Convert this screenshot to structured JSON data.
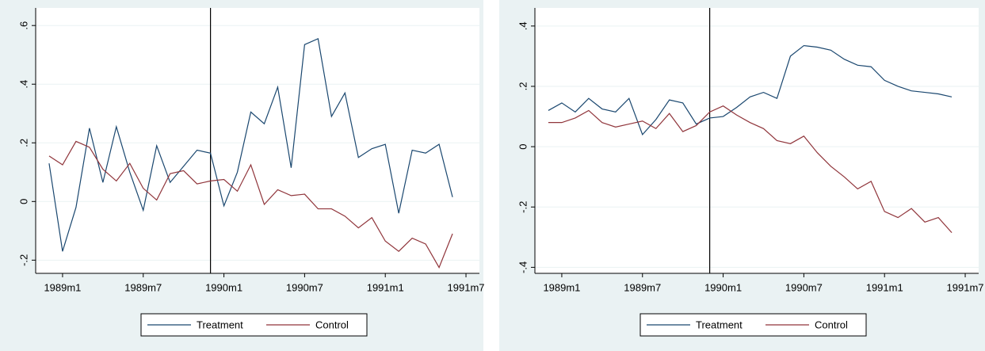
{
  "chart_data": [
    {
      "type": "line",
      "xline": "1989m12",
      "x": [
        "1988m12",
        "1989m1",
        "1989m2",
        "1989m3",
        "1989m4",
        "1989m5",
        "1989m6",
        "1989m7",
        "1989m8",
        "1989m9",
        "1989m10",
        "1989m11",
        "1989m12",
        "1990m1",
        "1990m2",
        "1990m3",
        "1990m4",
        "1990m5",
        "1990m6",
        "1990m7",
        "1990m8",
        "1990m9",
        "1990m10",
        "1990m11",
        "1990m12",
        "1991m1",
        "1991m2",
        "1991m3",
        "1991m4",
        "1991m5",
        "1991m6"
      ],
      "series": [
        {
          "name": "Treatment",
          "color": "#1a476f",
          "values": [
            0.13,
            -0.17,
            -0.02,
            0.25,
            0.065,
            0.255,
            0.1,
            -0.03,
            0.19,
            0.065,
            0.12,
            0.175,
            0.165,
            -0.015,
            0.1,
            0.305,
            0.265,
            0.39,
            0.115,
            0.535,
            0.555,
            0.29,
            0.37,
            0.15,
            0.18,
            0.195,
            -0.04,
            0.175,
            0.165,
            0.195,
            0.015
          ]
        },
        {
          "name": "Control",
          "color": "#90353b",
          "values": [
            0.155,
            0.125,
            0.205,
            0.185,
            0.11,
            0.07,
            0.13,
            0.045,
            0.005,
            0.095,
            0.105,
            0.06,
            0.07,
            0.075,
            0.035,
            0.125,
            -0.01,
            0.04,
            0.02,
            0.025,
            -0.025,
            -0.025,
            -0.05,
            -0.09,
            -0.055,
            -0.135,
            -0.17,
            -0.125,
            -0.145,
            -0.225,
            -0.11
          ]
        }
      ],
      "xlim": [
        "1988m11",
        "1991m8"
      ],
      "xticks": [
        "1989m1",
        "1989m7",
        "1990m1",
        "1990m7",
        "1991m1",
        "1991m7"
      ],
      "ylim": [
        -0.245,
        0.66
      ],
      "yticks": [
        {
          "value": -0.2,
          "label": "-.2"
        },
        0,
        {
          "value": 0.2,
          "label": ".2"
        },
        {
          "value": 0.4,
          "label": ".4"
        },
        {
          "value": 0.6,
          "label": ".6"
        }
      ],
      "grid": true
    },
    {
      "type": "line",
      "xline": "1989m12",
      "x": [
        "1988m12",
        "1989m1",
        "1989m2",
        "1989m3",
        "1989m4",
        "1989m5",
        "1989m6",
        "1989m7",
        "1989m8",
        "1989m9",
        "1989m10",
        "1989m11",
        "1989m12",
        "1990m1",
        "1990m2",
        "1990m3",
        "1990m4",
        "1990m5",
        "1990m6",
        "1990m7",
        "1990m8",
        "1990m9",
        "1990m10",
        "1990m11",
        "1990m12",
        "1991m1",
        "1991m2",
        "1991m3",
        "1991m4",
        "1991m5",
        "1991m6"
      ],
      "series": [
        {
          "name": "Treatment",
          "color": "#1a476f",
          "values": [
            0.12,
            0.145,
            0.115,
            0.16,
            0.125,
            0.115,
            0.16,
            0.04,
            0.09,
            0.155,
            0.145,
            0.075,
            0.095,
            0.1,
            0.13,
            0.165,
            0.18,
            0.16,
            0.3,
            0.335,
            0.33,
            0.32,
            0.29,
            0.27,
            0.265,
            0.22,
            0.2,
            0.185,
            0.18,
            0.175,
            0.165
          ]
        },
        {
          "name": "Control",
          "color": "#90353b",
          "values": [
            0.08,
            0.08,
            0.095,
            0.12,
            0.08,
            0.065,
            0.075,
            0.085,
            0.06,
            0.11,
            0.05,
            0.07,
            0.115,
            0.135,
            0.105,
            0.08,
            0.06,
            0.02,
            0.01,
            0.035,
            -0.02,
            -0.065,
            -0.1,
            -0.14,
            -0.115,
            -0.215,
            -0.235,
            -0.205,
            -0.25,
            -0.235,
            -0.285
          ]
        }
      ],
      "xlim": [
        "1988m11",
        "1991m8"
      ],
      "xticks": [
        "1989m1",
        "1989m7",
        "1990m1",
        "1990m7",
        "1991m1",
        "1991m7"
      ],
      "ylim": [
        -0.42,
        0.46
      ],
      "yticks": [
        {
          "value": -0.4,
          "label": "-.4"
        },
        {
          "value": -0.2,
          "label": "-.2"
        },
        0,
        {
          "value": 0.2,
          "label": ".2"
        },
        {
          "value": 0.4,
          "label": ".4"
        }
      ],
      "grid": true
    }
  ]
}
